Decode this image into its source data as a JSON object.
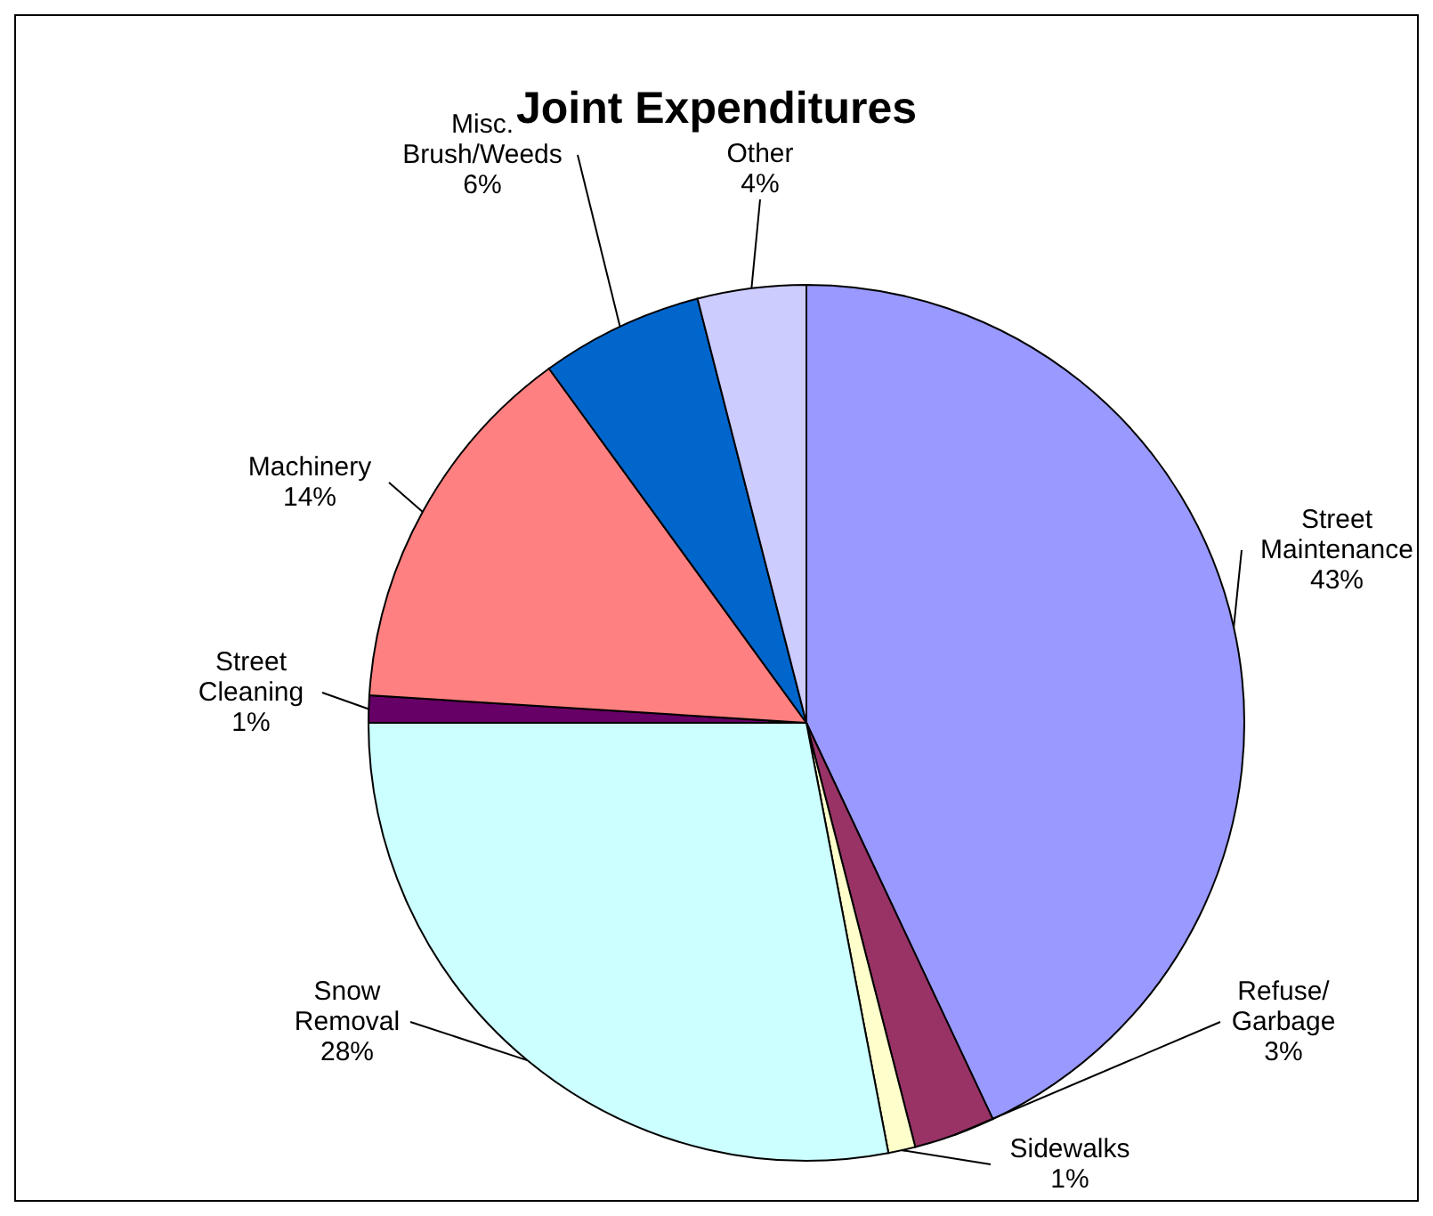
{
  "chart_data": {
    "type": "pie",
    "title": "Joint Expenditures",
    "categories": [
      "Street Maintenance",
      "Refuse/ Garbage",
      "Sidewalks",
      "Snow Removal",
      "Street Cleaning",
      "Machinery",
      "Misc. Brush/Weeds",
      "Other"
    ],
    "values": [
      43,
      3,
      1,
      28,
      1,
      14,
      6,
      4
    ],
    "value_labels": [
      "43%",
      "3%",
      "1%",
      "28%",
      "1%",
      "14%",
      "6%",
      "4%"
    ],
    "colors": [
      "#9999ff",
      "#993366",
      "#ffffcc",
      "#ccffff",
      "#660066",
      "#ff8080",
      "#0066cc",
      "#ccccff"
    ]
  }
}
